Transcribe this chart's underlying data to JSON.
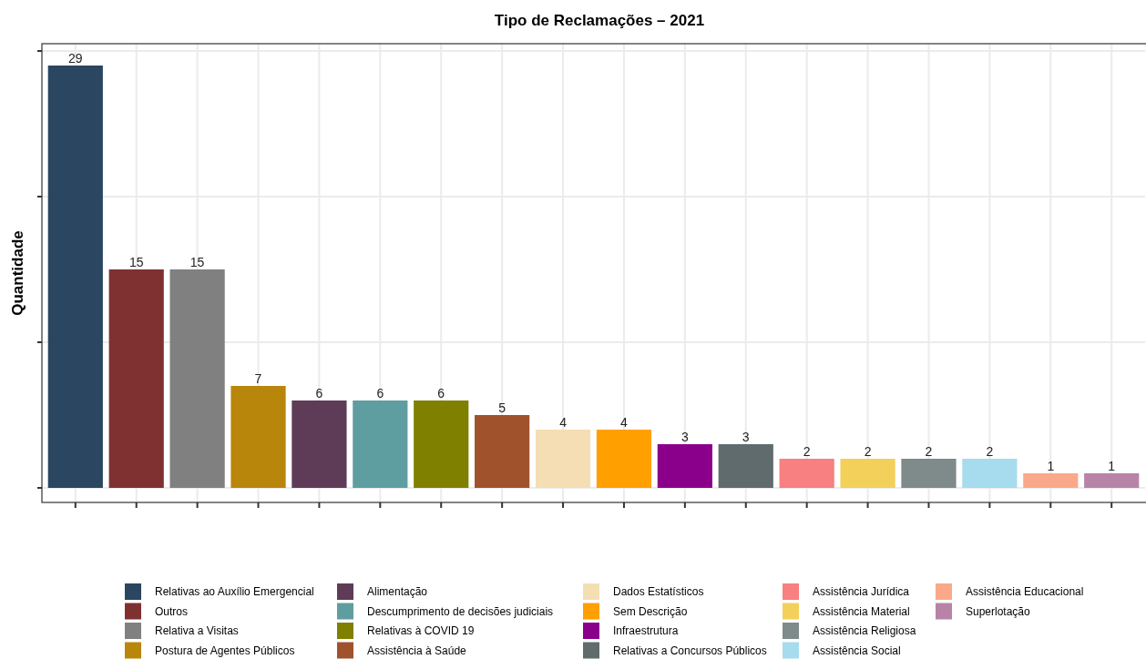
{
  "chart_data": {
    "type": "bar",
    "title": "Tipo de Reclamações – 2021",
    "ylabel": "Quantidade",
    "categories": [
      null,
      null,
      null,
      null,
      null,
      null,
      null,
      null,
      null,
      null,
      null,
      null,
      null,
      null,
      null,
      null,
      null,
      null
    ],
    "stacked": true,
    "series": [
      {
        "name": "Relativas ao Auxílio Emergencial",
        "color": "#2a4660",
        "values": [
          29,
          null,
          null,
          null,
          null,
          null,
          null,
          null,
          null,
          null,
          null,
          null,
          null,
          null,
          null,
          null,
          null,
          null
        ]
      },
      {
        "name": "Outros",
        "color": "#7f3132",
        "values": [
          null,
          15,
          null,
          null,
          null,
          null,
          null,
          null,
          null,
          null,
          null,
          null,
          null,
          null,
          null,
          null,
          null,
          null
        ]
      },
      {
        "name": "Relativa a Visitas",
        "color": "#808080",
        "values": [
          null,
          null,
          15,
          null,
          null,
          null,
          null,
          null,
          null,
          null,
          null,
          null,
          null,
          null,
          null,
          null,
          null,
          null
        ]
      },
      {
        "name": "Postura de Agentes Públicos",
        "color": "#b8860b",
        "values": [
          null,
          null,
          null,
          7,
          null,
          null,
          null,
          null,
          null,
          null,
          null,
          null,
          null,
          null,
          null,
          null,
          null,
          null
        ]
      },
      {
        "name": "Alimentação",
        "color": "#5e3c58",
        "values": [
          null,
          null,
          null,
          null,
          6,
          null,
          null,
          null,
          null,
          null,
          null,
          null,
          null,
          null,
          null,
          null,
          null,
          null
        ]
      },
      {
        "name": "Descumprimento de decisões judiciais",
        "color": "#5f9ea0",
        "values": [
          null,
          null,
          null,
          null,
          null,
          6,
          null,
          null,
          null,
          null,
          null,
          null,
          null,
          null,
          null,
          null,
          null,
          null
        ]
      },
      {
        "name": "Relativas à COVID 19",
        "color": "#808000",
        "values": [
          null,
          null,
          null,
          null,
          null,
          null,
          6,
          null,
          null,
          null,
          null,
          null,
          null,
          null,
          null,
          null,
          null,
          null
        ]
      },
      {
        "name": "Assistência à Saúde",
        "color": "#a0522d",
        "values": [
          null,
          null,
          null,
          null,
          null,
          null,
          null,
          5,
          null,
          null,
          null,
          null,
          null,
          null,
          null,
          null,
          null,
          null
        ]
      },
      {
        "name": "Dados Estatísticos",
        "color": "#f5deb3",
        "values": [
          null,
          null,
          null,
          null,
          null,
          null,
          null,
          null,
          4,
          null,
          null,
          null,
          null,
          null,
          null,
          null,
          null,
          null
        ]
      },
      {
        "name": "Sem Descrição",
        "color": "#ff9f00",
        "values": [
          null,
          null,
          null,
          null,
          null,
          null,
          null,
          null,
          null,
          4,
          null,
          null,
          null,
          null,
          null,
          null,
          null,
          null
        ]
      },
      {
        "name": "Infraestrutura",
        "color": "#8b008b",
        "values": [
          null,
          null,
          null,
          null,
          null,
          null,
          null,
          null,
          null,
          null,
          3,
          null,
          null,
          null,
          null,
          null,
          null,
          null
        ]
      },
      {
        "name": "Relativas a Concursos Públicos",
        "color": "#5f6b6d",
        "values": [
          null,
          null,
          null,
          null,
          null,
          null,
          null,
          null,
          null,
          null,
          null,
          3,
          null,
          null,
          null,
          null,
          null,
          null
        ]
      },
      {
        "name": "Assistência Jurídica",
        "color": "#f88080",
        "values": [
          null,
          null,
          null,
          null,
          null,
          null,
          null,
          null,
          null,
          null,
          null,
          null,
          2,
          null,
          null,
          null,
          null,
          null
        ]
      },
      {
        "name": "Assistência Material",
        "color": "#f3d05a",
        "values": [
          null,
          null,
          null,
          null,
          null,
          null,
          null,
          null,
          null,
          null,
          null,
          null,
          null,
          2,
          null,
          null,
          null,
          null
        ]
      },
      {
        "name": "Assistência Religiosa",
        "color": "#7f8a8a",
        "values": [
          null,
          null,
          null,
          null,
          null,
          null,
          null,
          null,
          null,
          null,
          null,
          null,
          null,
          null,
          2,
          null,
          null,
          null
        ]
      },
      {
        "name": "Assistência Social",
        "color": "#a6dced",
        "values": [
          null,
          null,
          null,
          null,
          null,
          null,
          null,
          null,
          null,
          null,
          null,
          null,
          null,
          null,
          null,
          2,
          null,
          null
        ]
      },
      {
        "name": "Assistência Educacional",
        "color": "#f9a98a",
        "values": [
          null,
          null,
          null,
          null,
          null,
          null,
          null,
          null,
          null,
          null,
          null,
          null,
          null,
          null,
          null,
          null,
          1,
          null
        ]
      },
      {
        "name": "Superlotação",
        "color": "#b784a7",
        "values": [
          null,
          null,
          null,
          null,
          null,
          null,
          null,
          null,
          null,
          null,
          null,
          null,
          null,
          null,
          null,
          null,
          null,
          1
        ]
      }
    ],
    "ylim": [
      -1,
      30.5
    ],
    "yticks": [
      {
        "value": 0,
        "label": null
      },
      {
        "value": 10,
        "label": null
      },
      {
        "value": 20,
        "label": null
      },
      {
        "value": 30,
        "label": null
      }
    ],
    "grid": true,
    "data_labels": true,
    "legend": "bottom"
  }
}
